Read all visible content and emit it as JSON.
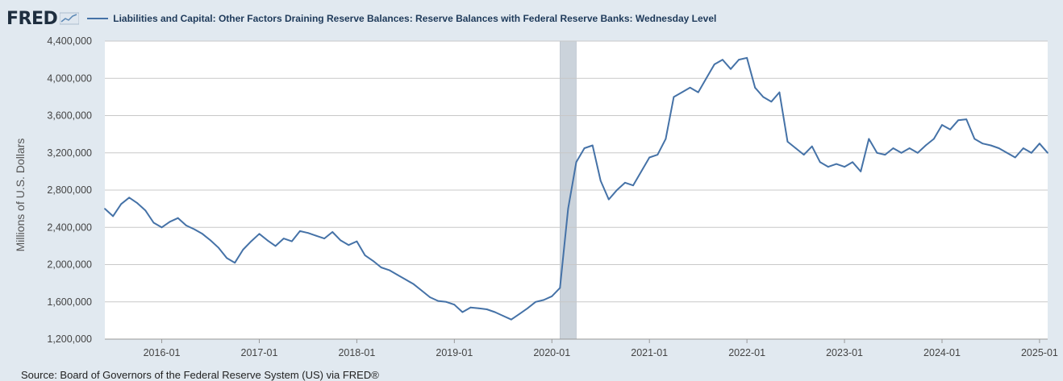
{
  "header": {
    "logo_text": "FRED",
    "logo_icon": "fred-sparkline-icon",
    "series_title": "Liabilities and Capital: Other Factors Draining Reserve Balances: Reserve Balances with Federal Reserve Banks: Wednesday Level"
  },
  "source_text": "Source: Board of Governors of the Federal Reserve System (US) via FRED®",
  "colors": {
    "line": "#4572a7",
    "recession": "#cbd3db",
    "grid": "#c8c8c8",
    "background": "#e1e9f0",
    "plot": "#ffffff"
  },
  "chart_data": {
    "type": "line",
    "ylabel": "Millions of U.S. Dollars",
    "xlabel": "",
    "ylim": [
      1200000,
      4400000
    ],
    "xlim": [
      "2015-06",
      "2025-02"
    ],
    "yticks": [
      1200000,
      1600000,
      2000000,
      2400000,
      2800000,
      3200000,
      3600000,
      4000000,
      4400000
    ],
    "ytick_labels": [
      "1,200,000",
      "1,600,000",
      "2,000,000",
      "2,400,000",
      "2,800,000",
      "3,200,000",
      "3,600,000",
      "4,000,000",
      "4,400,000"
    ],
    "xticks": [
      "2016-01",
      "2017-01",
      "2018-01",
      "2019-01",
      "2020-01",
      "2021-01",
      "2022-01",
      "2023-01",
      "2024-01",
      "2025-01"
    ],
    "grid": true,
    "recession_shading": [
      [
        "2020-02",
        "2020-04"
      ]
    ],
    "series": [
      {
        "x": [
          "2015-06",
          "2015-07",
          "2015-08",
          "2015-09",
          "2015-10",
          "2015-11",
          "2015-12",
          "2016-01",
          "2016-02",
          "2016-03",
          "2016-04",
          "2016-05",
          "2016-06",
          "2016-07",
          "2016-08",
          "2016-09",
          "2016-10",
          "2016-11",
          "2016-12",
          "2017-01",
          "2017-02",
          "2017-03",
          "2017-04",
          "2017-05",
          "2017-06",
          "2017-07",
          "2017-08",
          "2017-09",
          "2017-10",
          "2017-11",
          "2017-12",
          "2018-01",
          "2018-02",
          "2018-03",
          "2018-04",
          "2018-05",
          "2018-06",
          "2018-07",
          "2018-08",
          "2018-09",
          "2018-10",
          "2018-11",
          "2018-12",
          "2019-01",
          "2019-02",
          "2019-03",
          "2019-04",
          "2019-05",
          "2019-06",
          "2019-07",
          "2019-08",
          "2019-09",
          "2019-10",
          "2019-11",
          "2019-12",
          "2020-01",
          "2020-02",
          "2020-03",
          "2020-04",
          "2020-05",
          "2020-06",
          "2020-07",
          "2020-08",
          "2020-09",
          "2020-10",
          "2020-11",
          "2020-12",
          "2021-01",
          "2021-02",
          "2021-03",
          "2021-04",
          "2021-05",
          "2021-06",
          "2021-07",
          "2021-08",
          "2021-09",
          "2021-10",
          "2021-11",
          "2021-12",
          "2022-01",
          "2022-02",
          "2022-03",
          "2022-04",
          "2022-05",
          "2022-06",
          "2022-07",
          "2022-08",
          "2022-09",
          "2022-10",
          "2022-11",
          "2022-12",
          "2023-01",
          "2023-02",
          "2023-03",
          "2023-04",
          "2023-05",
          "2023-06",
          "2023-07",
          "2023-08",
          "2023-09",
          "2023-10",
          "2023-11",
          "2023-12",
          "2024-01",
          "2024-02",
          "2024-03",
          "2024-04",
          "2024-05",
          "2024-06",
          "2024-07",
          "2024-08",
          "2024-09",
          "2024-10",
          "2024-11",
          "2024-12",
          "2025-01",
          "2025-02"
        ],
        "values": [
          2600000,
          2520000,
          2650000,
          2720000,
          2660000,
          2580000,
          2450000,
          2400000,
          2460000,
          2500000,
          2420000,
          2380000,
          2330000,
          2260000,
          2180000,
          2070000,
          2020000,
          2160000,
          2250000,
          2330000,
          2260000,
          2200000,
          2280000,
          2250000,
          2360000,
          2340000,
          2310000,
          2280000,
          2350000,
          2260000,
          2210000,
          2250000,
          2100000,
          2040000,
          1970000,
          1940000,
          1890000,
          1840000,
          1790000,
          1720000,
          1650000,
          1610000,
          1600000,
          1570000,
          1490000,
          1540000,
          1530000,
          1520000,
          1490000,
          1450000,
          1410000,
          1470000,
          1530000,
          1600000,
          1620000,
          1660000,
          1750000,
          2600000,
          3100000,
          3250000,
          3280000,
          2900000,
          2700000,
          2800000,
          2880000,
          2850000,
          3000000,
          3150000,
          3180000,
          3350000,
          3800000,
          3850000,
          3900000,
          3850000,
          4000000,
          4150000,
          4200000,
          4100000,
          4200000,
          4220000,
          3900000,
          3800000,
          3750000,
          3850000,
          3320000,
          3250000,
          3180000,
          3270000,
          3100000,
          3050000,
          3080000,
          3050000,
          3100000,
          3000000,
          3350000,
          3200000,
          3180000,
          3250000,
          3200000,
          3250000,
          3200000,
          3280000,
          3350000,
          3500000,
          3450000,
          3550000,
          3560000,
          3350000,
          3300000,
          3280000,
          3250000,
          3200000,
          3150000,
          3250000,
          3200000,
          3300000,
          3200000
        ]
      }
    ]
  }
}
